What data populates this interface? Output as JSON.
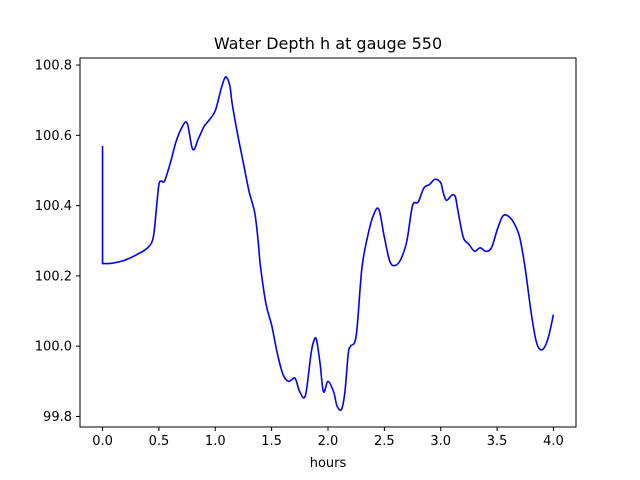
{
  "chart_data": {
    "type": "line",
    "title": "Water Depth h at gauge 550",
    "xlabel": "hours",
    "ylabel": "",
    "xlim": [
      -0.2,
      4.2
    ],
    "ylim": [
      99.77,
      100.82
    ],
    "xticks": [
      0.0,
      0.5,
      1.0,
      1.5,
      2.0,
      2.5,
      3.0,
      3.5,
      4.0
    ],
    "xtick_labels": [
      "0.0",
      "0.5",
      "1.0",
      "1.5",
      "2.0",
      "2.5",
      "3.0",
      "3.5",
      "4.0"
    ],
    "yticks": [
      99.8,
      100.0,
      100.2,
      100.4,
      100.6,
      100.8
    ],
    "ytick_labels": [
      "99.8",
      "100.0",
      "100.2",
      "100.4",
      "100.6",
      "100.8"
    ],
    "grid": false,
    "legend": "none",
    "series": [
      {
        "color": "#0000ff",
        "x": [
          0.0,
          0.0,
          0.05,
          0.1,
          0.2,
          0.3,
          0.4,
          0.45,
          0.48,
          0.5,
          0.52,
          0.55,
          0.6,
          0.65,
          0.7,
          0.75,
          0.8,
          0.85,
          0.9,
          0.95,
          1.0,
          1.05,
          1.08,
          1.1,
          1.13,
          1.15,
          1.2,
          1.25,
          1.3,
          1.35,
          1.38,
          1.4,
          1.45,
          1.5,
          1.55,
          1.6,
          1.65,
          1.7,
          1.72,
          1.75,
          1.8,
          1.85,
          1.88,
          1.9,
          1.93,
          1.96,
          2.0,
          2.05,
          2.08,
          2.12,
          2.15,
          2.18,
          2.2,
          2.25,
          2.3,
          2.35,
          2.4,
          2.45,
          2.5,
          2.55,
          2.6,
          2.65,
          2.7,
          2.75,
          2.8,
          2.85,
          2.9,
          2.95,
          3.0,
          3.02,
          3.05,
          3.1,
          3.13,
          3.15,
          3.2,
          3.25,
          3.3,
          3.35,
          3.4,
          3.45,
          3.5,
          3.55,
          3.6,
          3.65,
          3.7,
          3.75,
          3.8,
          3.85,
          3.9,
          3.95,
          4.0
        ],
        "y": [
          100.57,
          100.235,
          100.235,
          100.237,
          100.245,
          100.26,
          100.28,
          100.31,
          100.4,
          100.46,
          100.47,
          100.47,
          100.52,
          100.58,
          100.62,
          100.635,
          100.56,
          100.59,
          100.625,
          100.645,
          100.67,
          100.73,
          100.76,
          100.765,
          100.74,
          100.69,
          100.6,
          100.52,
          100.44,
          100.38,
          100.3,
          100.23,
          100.12,
          100.06,
          99.98,
          99.92,
          99.9,
          99.91,
          99.9,
          99.87,
          99.86,
          99.98,
          100.02,
          100.015,
          99.95,
          99.87,
          99.9,
          99.87,
          99.83,
          99.82,
          99.87,
          99.98,
          100.0,
          100.03,
          100.22,
          100.31,
          100.37,
          100.39,
          100.31,
          100.24,
          100.23,
          100.25,
          100.3,
          100.4,
          100.41,
          100.45,
          100.46,
          100.475,
          100.465,
          100.44,
          100.415,
          100.43,
          100.425,
          100.39,
          100.31,
          100.29,
          100.27,
          100.28,
          100.27,
          100.28,
          100.33,
          100.37,
          100.37,
          100.35,
          100.31,
          100.22,
          100.1,
          100.01,
          99.99,
          100.02,
          100.09
        ]
      }
    ]
  }
}
